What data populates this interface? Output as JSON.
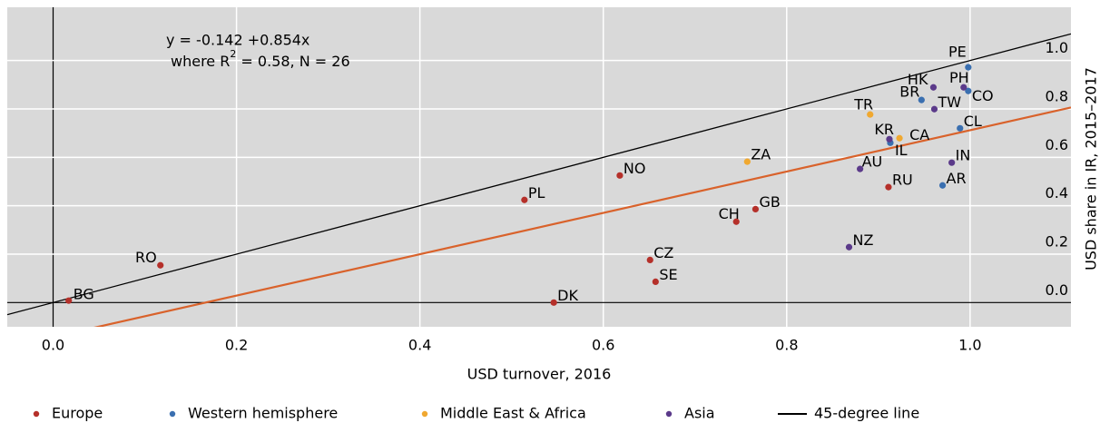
{
  "chart_data": {
    "type": "scatter",
    "xlabel": "USD turnover, 2016",
    "ylabel": "USD share in IR, 2015–2017",
    "annotation": {
      "line1": "y = -0.142 +0.854x",
      "line2_a": "where R",
      "line2_sup": "2",
      "line2_b": " = 0.58, N = 26"
    },
    "fit": {
      "intercept": -0.142,
      "slope": 0.854,
      "color": "#d9622b"
    },
    "reference_line": {
      "name": "45-degree line",
      "color": "#000000"
    },
    "xlim": [
      -0.05,
      1.11
    ],
    "ylim": [
      -0.1,
      1.22
    ],
    "xticks": [
      {
        "value": 0,
        "label": "0.0"
      },
      0.2,
      0.4,
      0.6,
      0.8,
      {
        "value": 1,
        "label": "1.0"
      }
    ],
    "yticks": [
      {
        "value": 0,
        "label": "0.0"
      },
      0.2,
      0.4,
      0.6,
      0.8,
      {
        "value": 1,
        "label": "1.0"
      }
    ],
    "grid": true,
    "series": [
      {
        "name": "Europe",
        "color": "#b5302a",
        "labels": [
          "BG",
          "RO",
          "PL",
          "NO",
          "DK",
          "CZ",
          "SE",
          "CH",
          "GB",
          "RU"
        ],
        "x": [
          0.017,
          0.117,
          0.514,
          0.618,
          0.546,
          0.651,
          0.657,
          0.745,
          0.766,
          0.911
        ],
        "values": [
          0.008,
          0.154,
          0.424,
          0.525,
          0.0,
          0.176,
          0.086,
          0.334,
          0.386,
          0.477
        ]
      },
      {
        "name": "Western hemisphere",
        "color": "#3a6fb0",
        "labels": [
          "AR",
          "CL",
          "BR",
          "CO",
          "PE",
          "IL"
        ],
        "x": [
          0.97,
          0.989,
          0.947,
          0.998,
          0.998,
          0.913
        ],
        "values": [
          0.484,
          0.72,
          0.837,
          0.874,
          0.972,
          0.66
        ]
      },
      {
        "name": "Middle East & Africa",
        "color": "#f0a830",
        "labels": [
          "ZA",
          "TR",
          "CA"
        ],
        "x": [
          0.757,
          0.891,
          0.923
        ],
        "values": [
          0.582,
          0.777,
          0.679
        ]
      },
      {
        "name": "Asia",
        "color": "#5b3a8a",
        "labels": [
          "AU",
          "NZ",
          "IN",
          "TW",
          "HK",
          "PH",
          "KR"
        ],
        "x": [
          0.88,
          0.868,
          0.98,
          0.961,
          0.96,
          0.993,
          0.912
        ],
        "values": [
          0.552,
          0.229,
          0.578,
          0.799,
          0.889,
          0.889,
          0.675
        ]
      }
    ]
  }
}
